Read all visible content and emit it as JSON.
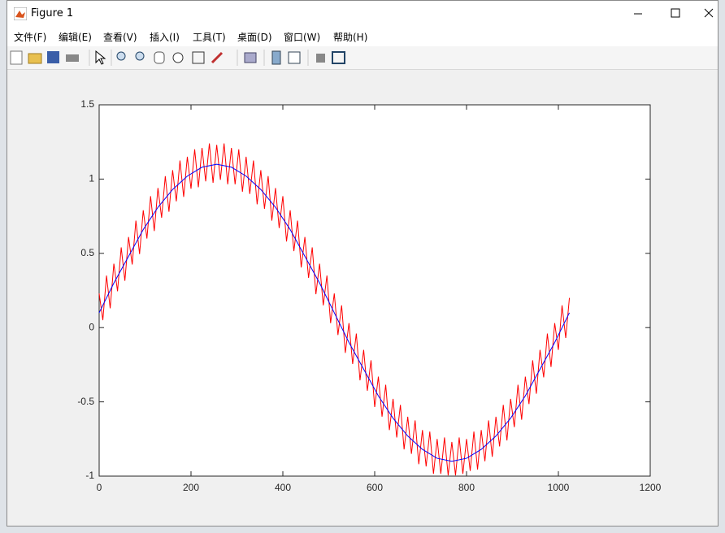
{
  "window": {
    "title": "Figure 1",
    "menu": [
      "文件(F)",
      "编辑(E)",
      "查看(V)",
      "插入(I)",
      "工具(T)",
      "桌面(D)",
      "窗口(W)",
      "帮助(H)"
    ]
  },
  "chart_data": {
    "type": "line",
    "xlim": [
      0,
      1200
    ],
    "xticks": [
      0,
      200,
      400,
      600,
      800,
      1000,
      1200
    ],
    "ylim": [
      -1,
      1.5
    ],
    "yticks": [
      -1,
      -0.5,
      0,
      0.5,
      1,
      1.5
    ],
    "series": [
      {
        "color": "#ff0000",
        "x": [
          0,
          8,
          16,
          24,
          32,
          40,
          48,
          56,
          64,
          72,
          80,
          88,
          96,
          104,
          112,
          120,
          128,
          136,
          144,
          152,
          160,
          168,
          176,
          184,
          192,
          200,
          208,
          216,
          224,
          232,
          240,
          248,
          256,
          264,
          272,
          280,
          288,
          296,
          304,
          312,
          320,
          328,
          336,
          344,
          352,
          360,
          368,
          376,
          384,
          392,
          400,
          408,
          416,
          424,
          432,
          440,
          448,
          456,
          464,
          472,
          480,
          488,
          496,
          504,
          512,
          520,
          528,
          536,
          544,
          552,
          560,
          568,
          576,
          584,
          592,
          600,
          608,
          616,
          624,
          632,
          640,
          648,
          656,
          664,
          672,
          680,
          688,
          696,
          704,
          712,
          720,
          728,
          736,
          744,
          752,
          760,
          768,
          776,
          784,
          792,
          800,
          808,
          816,
          824,
          832,
          840,
          848,
          856,
          864,
          872,
          880,
          888,
          896,
          904,
          912,
          920,
          928,
          936,
          944,
          952,
          960,
          968,
          976,
          984,
          992,
          1000,
          1008,
          1016,
          1024
        ],
        "values": [
          0.23,
          0.05,
          0.35,
          0.13,
          0.43,
          0.245,
          0.54,
          0.315,
          0.61,
          0.425,
          0.72,
          0.495,
          0.79,
          0.6,
          0.885,
          0.65,
          0.94,
          0.74,
          1.02,
          0.78,
          1.06,
          0.85,
          1.125,
          0.88,
          1.15,
          0.935,
          1.2,
          0.945,
          1.21,
          0.985,
          1.24,
          0.975,
          1.23,
          0.995,
          1.24,
          0.965,
          1.21,
          0.965,
          1.2,
          0.915,
          1.15,
          0.9,
          1.125,
          0.83,
          1.06,
          0.8,
          1.02,
          0.72,
          0.94,
          0.67,
          0.885,
          0.58,
          0.79,
          0.515,
          0.72,
          0.405,
          0.61,
          0.335,
          0.54,
          0.225,
          0.43,
          0.15,
          0.35,
          0.03,
          0.23,
          -0.05,
          0.15,
          -0.17,
          0.03,
          -0.245,
          -0.04,
          -0.355,
          -0.15,
          -0.425,
          -0.22,
          -0.535,
          -0.33,
          -0.6,
          -0.385,
          -0.69,
          -0.48,
          -0.74,
          -0.52,
          -0.82,
          -0.6,
          -0.85,
          -0.625,
          -0.92,
          -0.69,
          -0.935,
          -0.7,
          -0.985,
          -0.75,
          -0.985,
          -0.74,
          -0.995,
          -0.77,
          -0.995,
          -0.74,
          -0.985,
          -0.75,
          -0.965,
          -0.7,
          -0.955,
          -0.69,
          -0.9,
          -0.625,
          -0.87,
          -0.6,
          -0.8,
          -0.52,
          -0.76,
          -0.48,
          -0.67,
          -0.385,
          -0.62,
          -0.33,
          -0.515,
          -0.22,
          -0.445,
          -0.15,
          -0.335,
          -0.04,
          -0.265,
          0.03,
          -0.15,
          0.15,
          -0.07,
          0.2
        ]
      },
      {
        "color": "#0000ff",
        "x": [
          0,
          32,
          64,
          96,
          128,
          160,
          192,
          224,
          256,
          288,
          320,
          352,
          384,
          416,
          448,
          480,
          512,
          544,
          576,
          608,
          640,
          672,
          704,
          736,
          768,
          800,
          832,
          864,
          896,
          928,
          960,
          992,
          1024
        ],
        "values": [
          0.1,
          0.3,
          0.48,
          0.66,
          0.81,
          0.93,
          1.02,
          1.08,
          1.1,
          1.08,
          1.02,
          0.93,
          0.81,
          0.66,
          0.48,
          0.3,
          0.1,
          -0.1,
          -0.28,
          -0.46,
          -0.61,
          -0.73,
          -0.82,
          -0.88,
          -0.9,
          -0.88,
          -0.82,
          -0.73,
          -0.61,
          -0.46,
          -0.28,
          -0.1,
          0.1
        ]
      }
    ]
  }
}
